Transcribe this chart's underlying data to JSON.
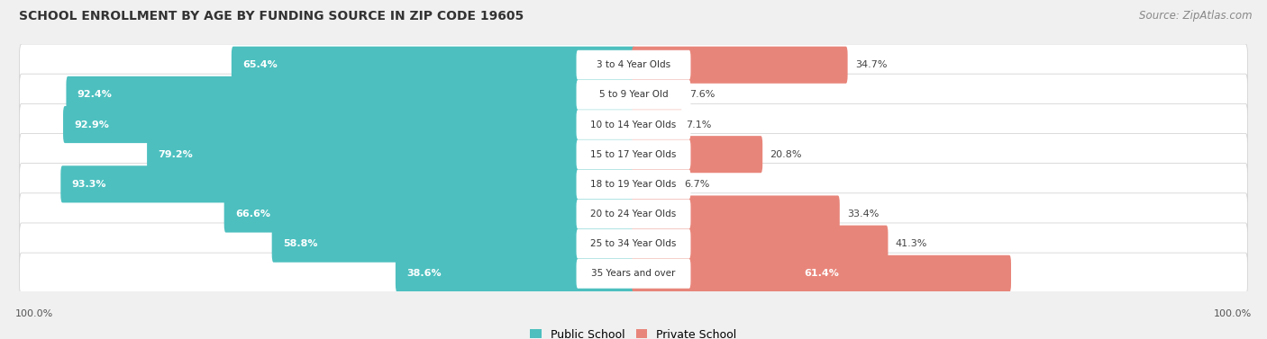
{
  "title": "SCHOOL ENROLLMENT BY AGE BY FUNDING SOURCE IN ZIP CODE 19605",
  "source": "Source: ZipAtlas.com",
  "categories": [
    "3 to 4 Year Olds",
    "5 to 9 Year Old",
    "10 to 14 Year Olds",
    "15 to 17 Year Olds",
    "18 to 19 Year Olds",
    "20 to 24 Year Olds",
    "25 to 34 Year Olds",
    "35 Years and over"
  ],
  "public_values": [
    65.4,
    92.4,
    92.9,
    79.2,
    93.3,
    66.6,
    58.8,
    38.6
  ],
  "private_values": [
    34.7,
    7.6,
    7.1,
    20.8,
    6.7,
    33.4,
    41.3,
    61.4
  ],
  "public_color": "#4DBFBF",
  "private_color": "#E8857A",
  "bg_color": "#F0F0F0",
  "row_bg_color": "#E8E8E8",
  "title_fontsize": 10,
  "source_fontsize": 8.5,
  "label_fontsize": 8,
  "cat_fontsize": 7.5,
  "legend_fontsize": 9,
  "axis_label_fontsize": 8
}
